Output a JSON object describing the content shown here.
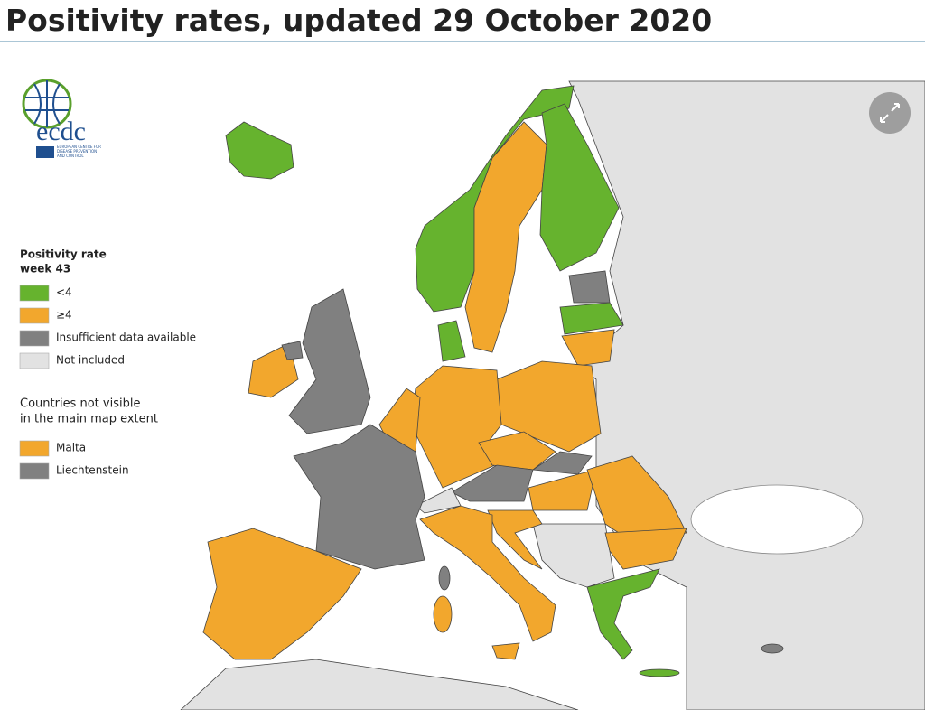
{
  "header": {
    "title": "Positivity rates, updated 29 October 2020"
  },
  "logo": {
    "name": "ecdc",
    "tagline": [
      "EUROPEAN CENTRE FOR",
      "DISEASE PREVENTION",
      "AND CONTROL"
    ]
  },
  "legend": {
    "title": [
      "Positivity rate",
      "week 43"
    ],
    "items": [
      {
        "label": "<4",
        "color": "#66b32e"
      },
      {
        "label": "≥4",
        "color": "#f2a72d"
      },
      {
        "label": "Insufficient data available",
        "color": "#808080"
      },
      {
        "label": "Not included",
        "color": "#e2e2e2"
      }
    ]
  },
  "inset": {
    "title": [
      "Countries not visible",
      "in the main map extent"
    ],
    "items": [
      {
        "label": "Malta",
        "color": "#f2a72d"
      },
      {
        "label": "Liechtenstein",
        "color": "#808080"
      }
    ]
  }
}
